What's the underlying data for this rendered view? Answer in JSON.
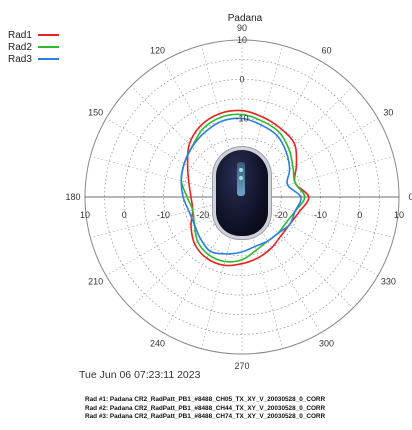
{
  "chart_data": {
    "type": "polar-line",
    "title": "Padana",
    "angle_tick_labels": [
      "90",
      "60",
      "30",
      "0",
      "330",
      "300",
      "270",
      "240",
      "210",
      "180",
      "150",
      "120"
    ],
    "angle_ticks": [
      90,
      60,
      30,
      0,
      330,
      300,
      270,
      240,
      210,
      180,
      150,
      120
    ],
    "radial_tick_labels": [
      "10",
      "0",
      "-10",
      "-20"
    ],
    "radial_ticks": [
      10,
      0,
      -10,
      -20
    ],
    "radial_range": [
      -30,
      10
    ],
    "angle_zero_direction": "right",
    "angle_direction": "counterclockwise",
    "grid": true,
    "legend_position": "top-left",
    "series": [
      {
        "name": "Rad1",
        "color": "#e8231f",
        "angles": [
          0,
          15,
          30,
          45,
          60,
          75,
          90,
          105,
          120,
          135,
          150,
          165,
          180,
          195,
          210,
          225,
          240,
          255,
          270,
          285,
          300,
          315,
          330,
          345
        ],
        "values": [
          -13,
          -16,
          -14,
          -11,
          -10,
          -9,
          -8,
          -8,
          -9,
          -11,
          -14,
          -16,
          -17,
          -17,
          -15,
          -13,
          -12,
          -12,
          -13,
          -14,
          -15,
          -16,
          -16,
          -15
        ]
      },
      {
        "name": "Rad2",
        "color": "#2fba2f",
        "angles": [
          0,
          15,
          30,
          45,
          60,
          75,
          90,
          105,
          120,
          135,
          150,
          165,
          180,
          195,
          210,
          225,
          240,
          255,
          270,
          285,
          300,
          315,
          330,
          345
        ],
        "values": [
          -14,
          -16,
          -15,
          -13,
          -11,
          -10,
          -9,
          -9,
          -10,
          -12,
          -13,
          -14,
          -16,
          -17,
          -16,
          -14,
          -13,
          -13,
          -14,
          -16,
          -17,
          -17,
          -17,
          -16
        ]
      },
      {
        "name": "Rad3",
        "color": "#2d7ee3",
        "angles": [
          0,
          15,
          30,
          45,
          60,
          75,
          90,
          105,
          120,
          135,
          150,
          165,
          180,
          195,
          210,
          225,
          240,
          255,
          270,
          285,
          300,
          315,
          330,
          345
        ],
        "values": [
          -15,
          -18,
          -16,
          -14,
          -12,
          -11,
          -10,
          -10,
          -11,
          -12,
          -13,
          -14,
          -15,
          -16,
          -16,
          -15,
          -14,
          -15,
          -16,
          -17,
          -17,
          -17,
          -16,
          -16
        ]
      }
    ]
  },
  "timestamp": "Tue Jun 06 07:23:11 2023",
  "notes": [
    "Rad #1: Padana CR2_RadPatt_PB1_#8488_CH05_TX_XY_V_20030528_0_CORR",
    "Rad #2: Padana CR2_RadPatt_PB1_#8488_CH44_TX_XY_V_20030528_0_CORR",
    "Rad #3: Padana CR2_RadPatt_PB1_#8488_CH74_TX_XY_V_20030528_0_CORR"
  ],
  "axis_label_row": [
    "10",
    "0",
    "-10",
    "-20",
    "-20",
    "-10",
    "0",
    "10"
  ]
}
